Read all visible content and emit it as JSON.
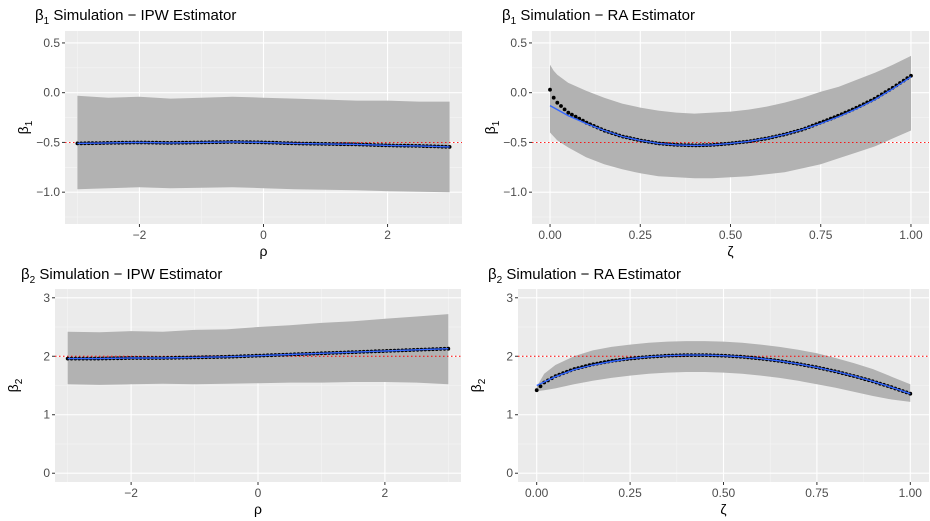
{
  "chart_data": [
    {
      "id": "p1",
      "type": "scatter",
      "title_sym": "β",
      "title_sub": "1",
      "title_rest": " Simulation − IPW Estimator",
      "xlabel": "ρ",
      "ylabel_sym": "β",
      "ylabel_sub": "1",
      "xlim": [
        -3.2,
        3.2
      ],
      "ylim": [
        -1.32,
        0.62
      ],
      "xticks": [
        -2,
        0,
        2
      ],
      "xtick_labels": [
        "−2",
        "0",
        "2"
      ],
      "yticks": [
        -1.0,
        -0.5,
        0.0,
        0.5
      ],
      "ytick_labels": [
        "−1.0",
        "−0.5",
        "0.0",
        "0.5"
      ],
      "grid": true,
      "reference_line": -0.5,
      "x": [
        -3,
        -2.5,
        -2,
        -1.5,
        -1,
        -0.5,
        0,
        0.5,
        1,
        1.5,
        2,
        2.5,
        3
      ],
      "estimate": [
        -0.51,
        -0.505,
        -0.5,
        -0.505,
        -0.5,
        -0.495,
        -0.5,
        -0.51,
        -0.515,
        -0.52,
        -0.53,
        -0.535,
        -0.545
      ],
      "band_lower": [
        -0.97,
        -0.96,
        -0.95,
        -0.96,
        -0.955,
        -0.95,
        -0.96,
        -0.97,
        -0.975,
        -0.98,
        -0.99,
        -0.995,
        -1.0
      ],
      "band_upper": [
        -0.03,
        -0.05,
        -0.04,
        -0.06,
        -0.05,
        -0.04,
        -0.05,
        -0.06,
        -0.07,
        -0.08,
        -0.08,
        -0.09,
        -0.09
      ]
    },
    {
      "id": "p2",
      "type": "scatter",
      "title_sym": "β",
      "title_sub": "1",
      "title_rest": " Simulation − RA Estimator",
      "xlabel": "ζ",
      "ylabel_sym": "β",
      "ylabel_sub": "1",
      "xlim": [
        -0.05,
        1.05
      ],
      "ylim": [
        -1.32,
        0.62
      ],
      "xticks": [
        0,
        0.25,
        0.5,
        0.75,
        1.0
      ],
      "xtick_labels": [
        "0.00",
        "0.25",
        "0.50",
        "0.75",
        "1.00"
      ],
      "yticks": [
        -1.0,
        -0.5,
        0.0,
        0.5
      ],
      "ytick_labels": [
        "−1.0",
        "−0.5",
        "0.0",
        "0.5"
      ],
      "grid": true,
      "reference_line": -0.5,
      "x": [
        0,
        0.01,
        0.02,
        0.05,
        0.1,
        0.15,
        0.2,
        0.25,
        0.3,
        0.35,
        0.4,
        0.45,
        0.5,
        0.55,
        0.6,
        0.65,
        0.7,
        0.75,
        0.8,
        0.85,
        0.9,
        0.95,
        1.0
      ],
      "estimate": [
        0.03,
        -0.05,
        -0.1,
        -0.2,
        -0.3,
        -0.38,
        -0.44,
        -0.48,
        -0.51,
        -0.525,
        -0.53,
        -0.525,
        -0.51,
        -0.49,
        -0.46,
        -0.42,
        -0.37,
        -0.3,
        -0.23,
        -0.15,
        -0.06,
        0.05,
        0.17
      ],
      "band_lower": [
        -0.4,
        -0.44,
        -0.48,
        -0.55,
        -0.65,
        -0.72,
        -0.77,
        -0.81,
        -0.84,
        -0.85,
        -0.86,
        -0.86,
        -0.85,
        -0.84,
        -0.82,
        -0.8,
        -0.76,
        -0.72,
        -0.66,
        -0.6,
        -0.54,
        -0.46,
        -0.38
      ],
      "band_upper": [
        0.28,
        0.22,
        0.18,
        0.1,
        0.02,
        -0.05,
        -0.11,
        -0.15,
        -0.18,
        -0.2,
        -0.21,
        -0.2,
        -0.19,
        -0.17,
        -0.14,
        -0.1,
        -0.05,
        0.01,
        0.06,
        0.13,
        0.2,
        0.28,
        0.37
      ],
      "fit": [
        -0.13,
        -0.15,
        -0.17,
        -0.23,
        -0.31,
        -0.38,
        -0.44,
        -0.48,
        -0.51,
        -0.525,
        -0.53,
        -0.525,
        -0.51,
        -0.49,
        -0.46,
        -0.42,
        -0.37,
        -0.31,
        -0.24,
        -0.16,
        -0.07,
        0.04,
        0.16
      ]
    },
    {
      "id": "p3",
      "type": "scatter",
      "title_sym": "β",
      "title_sub": "2",
      "title_rest": " Simulation − IPW Estimator",
      "xlabel": "ρ",
      "ylabel_sym": "β",
      "ylabel_sub": "2",
      "xlim": [
        -3.2,
        3.2
      ],
      "ylim": [
        -0.15,
        3.15
      ],
      "xticks": [
        -2,
        0,
        2
      ],
      "xtick_labels": [
        "−2",
        "0",
        "2"
      ],
      "yticks": [
        0,
        1,
        2,
        3
      ],
      "ytick_labels": [
        "0",
        "1",
        "2",
        "3"
      ],
      "grid": true,
      "reference_line": 2.0,
      "x": [
        -3,
        -2.5,
        -2,
        -1.5,
        -1,
        -0.5,
        0,
        0.5,
        1,
        1.5,
        2,
        2.5,
        3
      ],
      "estimate": [
        1.96,
        1.96,
        1.97,
        1.97,
        1.98,
        1.99,
        2.01,
        2.03,
        2.05,
        2.07,
        2.09,
        2.11,
        2.13
      ],
      "band_lower": [
        1.52,
        1.51,
        1.52,
        1.53,
        1.52,
        1.53,
        1.54,
        1.55,
        1.55,
        1.56,
        1.56,
        1.55,
        1.52
      ],
      "band_upper": [
        2.42,
        2.41,
        2.43,
        2.42,
        2.45,
        2.46,
        2.5,
        2.53,
        2.57,
        2.6,
        2.64,
        2.68,
        2.72
      ]
    },
    {
      "id": "p4",
      "type": "scatter",
      "title_sym": "β",
      "title_sub": "2",
      "title_rest": " Simulation − RA Estimator",
      "xlabel": "ζ",
      "ylabel_sym": "β",
      "ylabel_sub": "2",
      "xlim": [
        -0.05,
        1.05
      ],
      "ylim": [
        -0.15,
        3.15
      ],
      "xticks": [
        0,
        0.25,
        0.5,
        0.75,
        1.0
      ],
      "xtick_labels": [
        "0.00",
        "0.25",
        "0.50",
        "0.75",
        "1.00"
      ],
      "yticks": [
        0,
        1,
        2,
        3
      ],
      "ytick_labels": [
        "0",
        "1",
        "2",
        "3"
      ],
      "grid": true,
      "reference_line": 2.0,
      "x": [
        0,
        0.02,
        0.05,
        0.1,
        0.15,
        0.2,
        0.25,
        0.3,
        0.35,
        0.4,
        0.45,
        0.5,
        0.55,
        0.6,
        0.65,
        0.7,
        0.75,
        0.8,
        0.85,
        0.9,
        0.95,
        1.0
      ],
      "estimate": [
        1.42,
        1.55,
        1.66,
        1.78,
        1.86,
        1.92,
        1.96,
        1.99,
        2.01,
        2.02,
        2.02,
        2.01,
        1.99,
        1.96,
        1.92,
        1.87,
        1.81,
        1.74,
        1.66,
        1.57,
        1.47,
        1.36
      ],
      "band_lower": [
        1.4,
        1.42,
        1.45,
        1.52,
        1.58,
        1.63,
        1.67,
        1.7,
        1.72,
        1.73,
        1.73,
        1.72,
        1.7,
        1.67,
        1.63,
        1.58,
        1.52,
        1.46,
        1.39,
        1.32,
        1.26,
        1.22
      ],
      "band_upper": [
        1.48,
        1.7,
        1.85,
        2.0,
        2.1,
        2.16,
        2.2,
        2.23,
        2.25,
        2.26,
        2.26,
        2.25,
        2.23,
        2.2,
        2.16,
        2.11,
        2.05,
        1.97,
        1.88,
        1.78,
        1.65,
        1.52
      ],
      "fit": [
        1.5,
        1.56,
        1.65,
        1.77,
        1.85,
        1.91,
        1.96,
        1.99,
        2.01,
        2.02,
        2.02,
        2.01,
        1.99,
        1.96,
        1.92,
        1.87,
        1.81,
        1.74,
        1.66,
        1.57,
        1.47,
        1.36
      ]
    }
  ],
  "colors": {
    "panel_bg": "#ebebeb",
    "grid_major": "#ffffff",
    "grid_minor": "#f5f5f5",
    "band": "#b2b2b2",
    "points": "#000000",
    "fit_line": "#3366ff",
    "reference_line": "#ff0000",
    "tick_text": "#4d4d4d"
  }
}
